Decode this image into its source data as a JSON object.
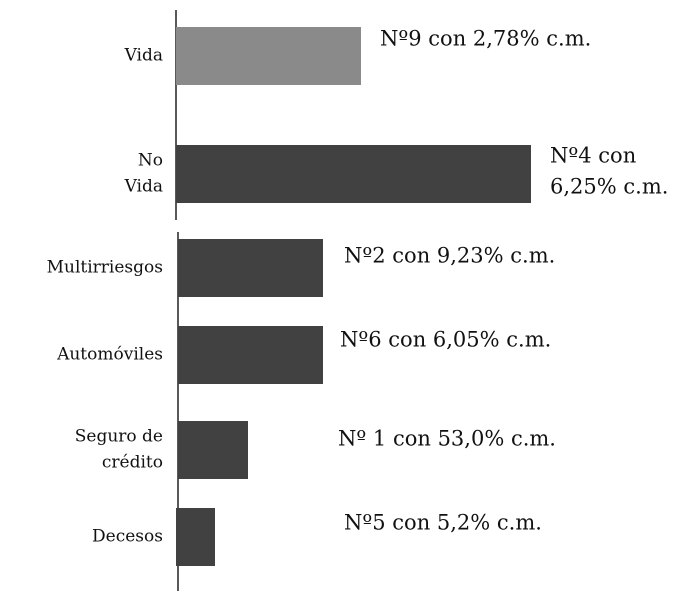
{
  "chart_data": {
    "type": "bar",
    "orientation": "horizontal",
    "categories": [
      [
        "Vida"
      ],
      [
        "No",
        "Vida"
      ],
      [
        "Multirriesgos"
      ],
      [
        "Automóviles"
      ],
      [
        "Seguro de",
        "crédito"
      ],
      [
        "Decesos"
      ]
    ],
    "values": [
      185,
      355,
      145,
      145,
      70,
      39
    ],
    "colors": [
      "#8a8a8a",
      "#414141",
      "#414141",
      "#414141",
      "#414141",
      "#414141"
    ],
    "annotations": [
      [
        "Nº9 con 2,78% c.m."
      ],
      [
        "Nº4 con",
        "6,25% c.m."
      ],
      [
        "Nº2 con 9,23% c.m."
      ],
      [
        "Nº6 con 6,05% c.m."
      ],
      [
        "Nº 1 con 53,0% c.m."
      ],
      [
        "Nº5  con 5,2% c.m."
      ]
    ]
  }
}
